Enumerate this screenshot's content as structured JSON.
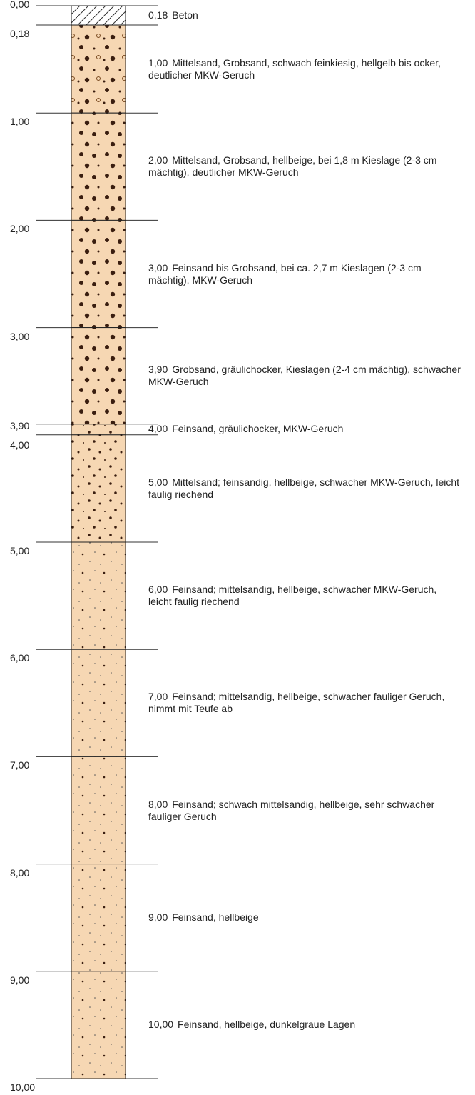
{
  "top": {
    "value": 0,
    "label": "0,00"
  },
  "layers": [
    {
      "bottom": {
        "value": 0.18,
        "label": "0,18"
      },
      "description": "Beton"
    },
    {
      "bottom": {
        "value": 1.0,
        "label": "1,00"
      },
      "description": "Mittelsand, Grobsand, schwach feinkiesig, hellgelb bis ocker, deutlicher MKW-Geruch"
    },
    {
      "bottom": {
        "value": 2.0,
        "label": "2,00"
      },
      "description": "Mittelsand, Grobsand, hellbeige, bei 1,8 m Kieslage (2-3 cm mächtig), deutlicher MKW-Geruch"
    },
    {
      "bottom": {
        "value": 3.0,
        "label": "3,00"
      },
      "description": "Feinsand bis Grobsand, bei ca. 2,7 m Kieslagen (2-3 cm mächtig), MKW-Geruch"
    },
    {
      "bottom": {
        "value": 3.9,
        "label": "3,90"
      },
      "description": "Grobsand, gräulichocker, Kieslagen (2-4 cm mächtig), schwacher MKW-Geruch"
    },
    {
      "bottom": {
        "value": 4.0,
        "label": "4,00"
      },
      "description": "Feinsand, gräulichocker, MKW-Geruch"
    },
    {
      "bottom": {
        "value": 5.0,
        "label": "5,00"
      },
      "description": "Mittelsand; feinsandig, hellbeige, schwacher MKW-Geruch, leicht faulig riechend"
    },
    {
      "bottom": {
        "value": 6.0,
        "label": "6,00"
      },
      "description": "Feinsand; mittelsandig, hellbeige, schwacher MKW-Geruch, leicht faulig riechend"
    },
    {
      "bottom": {
        "value": 7.0,
        "label": "7,00"
      },
      "description": "Feinsand; mittelsandig, hellbeige, schwacher fauliger Geruch, nimmt mit Teufe ab"
    },
    {
      "bottom": {
        "value": 8.0,
        "label": "8,00"
      },
      "description": "Feinsand; schwach mittelsandig, hellbeige, sehr schwacher fauliger Geruch"
    },
    {
      "bottom": {
        "value": 9.0,
        "label": "9,00"
      },
      "description": "Feinsand, hellbeige"
    },
    {
      "bottom": {
        "value": 10.0,
        "label": "10,00"
      },
      "description": "Feinsand, hellbeige, dunkelgraue Lagen"
    }
  ]
}
